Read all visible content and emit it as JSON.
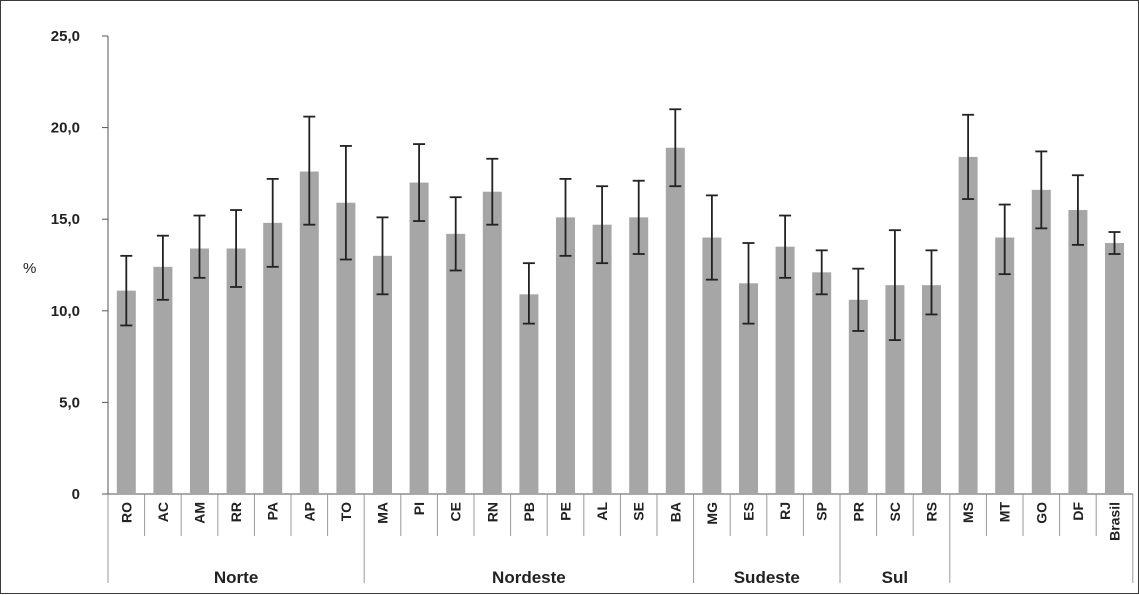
{
  "chart_data": {
    "type": "bar",
    "ylabel": "%",
    "ylim": [
      0,
      25
    ],
    "yticks": [
      "0",
      "5,0",
      "10,0",
      "15,0",
      "20,0",
      "25,0"
    ],
    "categories": [
      "RO",
      "AC",
      "AM",
      "RR",
      "PA",
      "AP",
      "TO",
      "MA",
      "PI",
      "CE",
      "RN",
      "PB",
      "PE",
      "AL",
      "SE",
      "BA",
      "MG",
      "ES",
      "RJ",
      "SP",
      "PR",
      "SC",
      "RS",
      "MS",
      "MT",
      "GO",
      "DF",
      "Brasil"
    ],
    "values": [
      11.1,
      12.4,
      13.4,
      13.4,
      14.8,
      17.6,
      15.9,
      13.0,
      17.0,
      14.2,
      16.5,
      10.9,
      15.1,
      14.7,
      15.1,
      18.9,
      14.0,
      11.5,
      13.5,
      12.1,
      10.6,
      11.4,
      11.4,
      18.4,
      14.0,
      16.6,
      15.5,
      13.7
    ],
    "error_low": [
      9.2,
      10.6,
      11.8,
      11.3,
      12.4,
      14.7,
      12.8,
      10.9,
      14.9,
      12.2,
      14.7,
      9.3,
      13.0,
      12.6,
      13.1,
      16.8,
      11.7,
      9.3,
      11.8,
      10.9,
      8.9,
      8.4,
      9.8,
      16.1,
      12.0,
      14.5,
      13.6,
      13.1
    ],
    "error_high": [
      13.0,
      14.1,
      15.2,
      15.5,
      17.2,
      20.6,
      19.0,
      15.1,
      19.1,
      16.2,
      18.3,
      12.6,
      17.2,
      16.8,
      17.1,
      21.0,
      16.3,
      13.7,
      15.2,
      13.3,
      12.3,
      14.4,
      13.3,
      20.7,
      15.8,
      18.7,
      17.4,
      14.3
    ],
    "groups": [
      {
        "name": "Norte",
        "start": 0,
        "end": 6
      },
      {
        "name": "Nordeste",
        "start": 7,
        "end": 15
      },
      {
        "name": "Sudeste",
        "start": 16,
        "end": 19
      },
      {
        "name": "Sul",
        "start": 20,
        "end": 22
      },
      {
        "name": "",
        "start": 23,
        "end": 27
      }
    ],
    "bar_color": "#a6a6a6",
    "error_color": "#222222",
    "grid": false
  }
}
